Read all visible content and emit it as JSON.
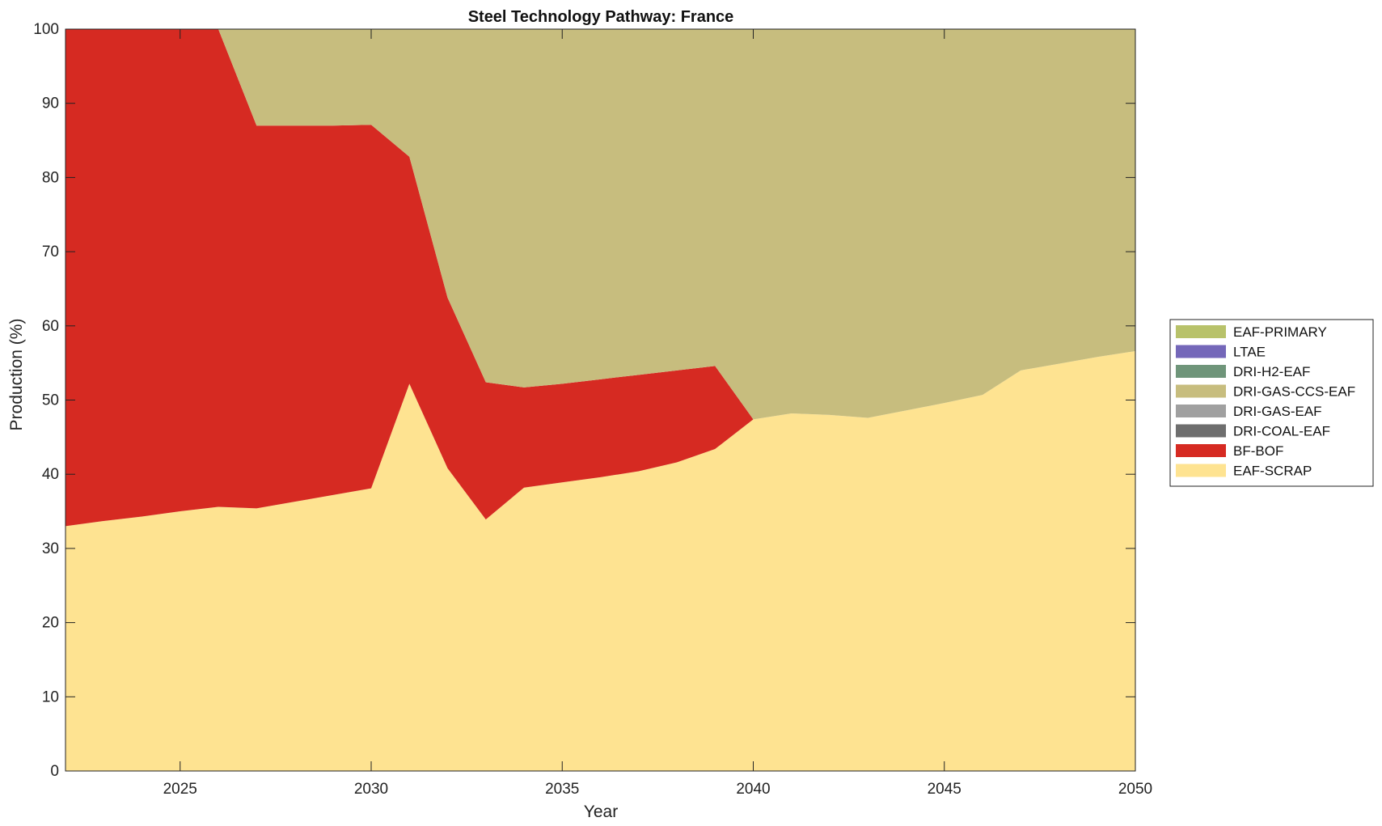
{
  "chart_data": {
    "type": "area",
    "stacked": true,
    "title": "Steel Technology Pathway: France",
    "xlabel": "Year",
    "ylabel": "Production (%)",
    "xlim": [
      2022,
      2050
    ],
    "ylim": [
      0,
      100
    ],
    "xticks": [
      2025,
      2030,
      2035,
      2040,
      2045,
      2050
    ],
    "yticks": [
      0,
      10,
      20,
      30,
      40,
      50,
      60,
      70,
      80,
      90,
      100
    ],
    "grid": false,
    "legend_position": "right",
    "x": [
      2022,
      2023,
      2024,
      2025,
      2026,
      2027,
      2028,
      2029,
      2030,
      2031,
      2032,
      2033,
      2034,
      2035,
      2036,
      2037,
      2038,
      2039,
      2040,
      2041,
      2042,
      2043,
      2044,
      2045,
      2046,
      2047,
      2048,
      2049,
      2050
    ],
    "series": [
      {
        "name": "EAF-SCRAP",
        "color": "#fee391",
        "values": [
          33.0,
          33.7,
          34.3,
          35.0,
          35.6,
          35.4,
          36.3,
          37.2,
          38.1,
          52.2,
          40.8,
          33.9,
          38.2,
          38.9,
          39.6,
          40.4,
          41.6,
          43.4,
          47.4,
          48.2,
          48.0,
          47.6,
          48.6,
          49.6,
          50.7,
          54.0,
          54.9,
          55.8,
          56.6
        ]
      },
      {
        "name": "BF-BOF",
        "color": "#d62a22",
        "values": [
          67.0,
          66.3,
          65.7,
          65.0,
          64.4,
          51.6,
          50.7,
          49.8,
          49.0,
          30.6,
          23.0,
          18.5,
          13.5,
          13.3,
          13.2,
          13.0,
          12.4,
          11.2,
          0,
          0,
          0,
          0,
          0,
          0,
          0,
          0,
          0,
          0,
          0
        ]
      },
      {
        "name": "DRI-COAL-EAF",
        "color": "#6e6e6e",
        "values": [
          0,
          0,
          0,
          0,
          0,
          0,
          0,
          0,
          0,
          0,
          0,
          0,
          0,
          0,
          0,
          0,
          0,
          0,
          0,
          0,
          0,
          0,
          0,
          0,
          0,
          0,
          0,
          0,
          0
        ]
      },
      {
        "name": "DRI-GAS-EAF",
        "color": "#a0a0a0",
        "values": [
          0,
          0,
          0,
          0,
          0,
          0,
          0,
          0,
          0,
          0,
          0,
          0,
          0,
          0,
          0,
          0,
          0,
          0,
          0,
          0,
          0,
          0,
          0,
          0,
          0,
          0,
          0,
          0,
          0
        ]
      },
      {
        "name": "DRI-GAS-CCS-EAF",
        "color": "#c7bd7e",
        "values": [
          0,
          0,
          0,
          0,
          0,
          13.0,
          13.0,
          13.0,
          12.9,
          17.2,
          36.2,
          47.6,
          48.3,
          47.8,
          47.2,
          46.6,
          46.0,
          45.4,
          52.6,
          51.8,
          52.0,
          52.4,
          51.4,
          50.4,
          49.3,
          46.0,
          45.1,
          44.2,
          43.4
        ]
      },
      {
        "name": "DRI-H2-EAF",
        "color": "#6f957a",
        "values": [
          0,
          0,
          0,
          0,
          0,
          0,
          0,
          0,
          0,
          0,
          0,
          0,
          0,
          0,
          0,
          0,
          0,
          0,
          0,
          0,
          0,
          0,
          0,
          0,
          0,
          0,
          0,
          0,
          0
        ]
      },
      {
        "name": "LTAE",
        "color": "#7467b9",
        "values": [
          0,
          0,
          0,
          0,
          0,
          0,
          0,
          0,
          0,
          0,
          0,
          0,
          0,
          0,
          0,
          0,
          0,
          0,
          0,
          0,
          0,
          0,
          0,
          0,
          0,
          0,
          0,
          0,
          0
        ]
      },
      {
        "name": "EAF-PRIMARY",
        "color": "#b8c26a",
        "values": [
          0,
          0,
          0,
          0,
          0,
          0,
          0,
          0,
          0,
          0,
          0,
          0,
          0,
          0,
          0,
          0,
          0,
          0,
          0,
          0,
          0,
          0,
          0,
          0,
          0,
          0,
          0,
          0,
          0
        ]
      }
    ],
    "legend_order": [
      "EAF-PRIMARY",
      "LTAE",
      "DRI-H2-EAF",
      "DRI-GAS-CCS-EAF",
      "DRI-GAS-EAF",
      "DRI-COAL-EAF",
      "BF-BOF",
      "EAF-SCRAP"
    ]
  }
}
